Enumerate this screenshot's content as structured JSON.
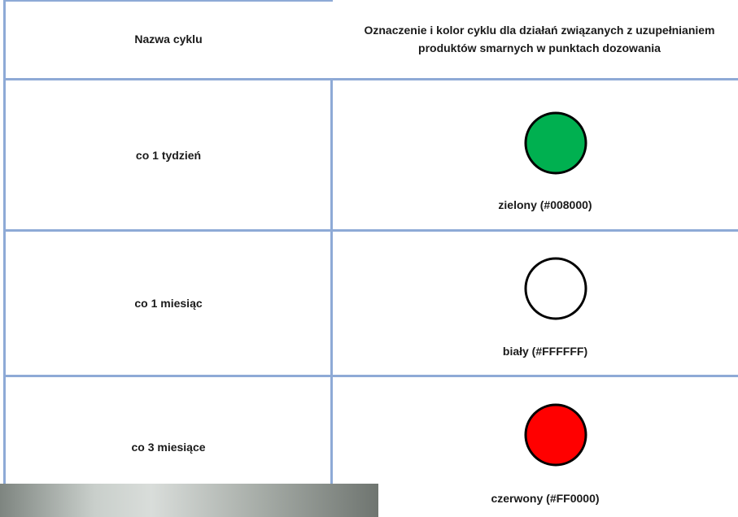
{
  "table": {
    "header": [
      "Nazwa cyklu",
      "Oznaczenie i kolor cyklu dla działań związanych z uzupełnianiem produktów smarnych w punktach dozowania"
    ],
    "rows": [
      [
        "co 1 tydzień",
        "zielony (#008000)"
      ],
      [
        "co 1 miesiąc",
        "biały (#FFFFFF)"
      ],
      [
        "co 3 miesiące",
        "czerwony (#FF0000)"
      ]
    ]
  }
}
